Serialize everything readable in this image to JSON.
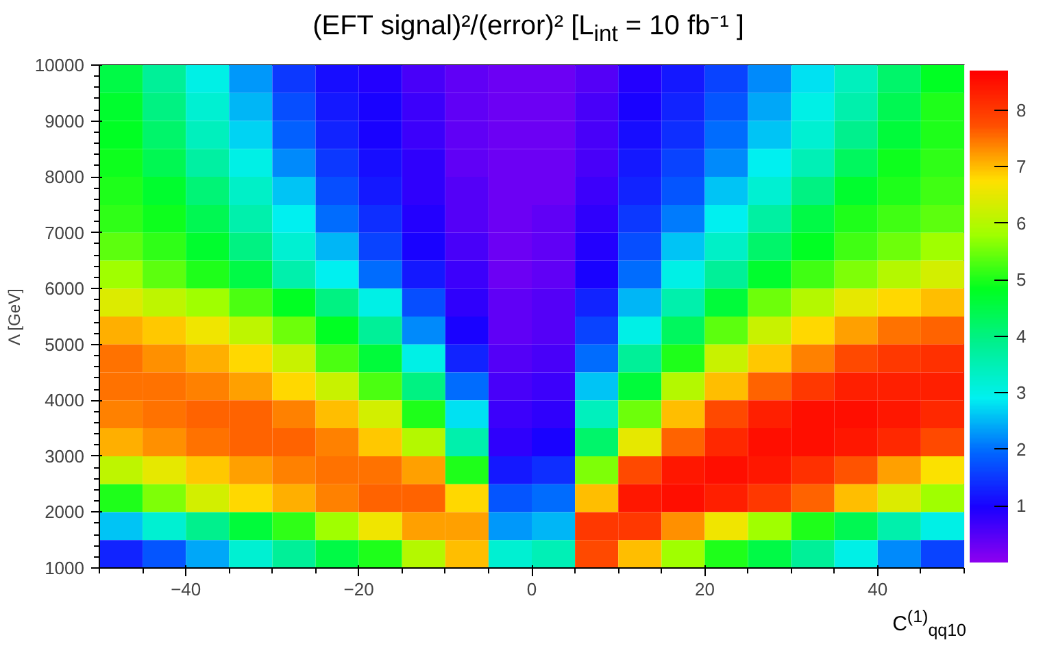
{
  "chart_data": {
    "type": "heatmap",
    "title": "(EFT signal)²/(error)² [L$_{int}$ = 10 fb⁻¹ ]",
    "xlabel": "C$^{(1)}$$_{qq10}$",
    "ylabel": "Λ [GeV]",
    "x": [
      -47.5,
      -42.5,
      -37.5,
      -32.5,
      -27.5,
      -22.5,
      -17.5,
      -12.5,
      -7.5,
      -2.5,
      2.5,
      7.5,
      12.5,
      17.5,
      22.5,
      27.5,
      32.5,
      37.5,
      42.5,
      47.5
    ],
    "y": [
      9750,
      9250,
      8750,
      8250,
      7750,
      7250,
      6750,
      6250,
      5750,
      5250,
      4750,
      4250,
      3750,
      3250,
      2750,
      2250,
      1750,
      1250
    ],
    "xlim": [
      -50,
      50
    ],
    "xticks": [
      -40,
      -20,
      0,
      20,
      40
    ],
    "ylim": [
      1000,
      10000
    ],
    "yticks": [
      1000,
      2000,
      3000,
      4000,
      5000,
      6000,
      7000,
      8000,
      9000,
      10000
    ],
    "clim": [
      0,
      8.7
    ],
    "cticks": [
      1,
      2,
      3,
      4,
      5,
      6,
      7,
      8
    ],
    "colors": [
      "#8c00f0",
      "#1a00ff",
      "#0066ff",
      "#00f0f0",
      "#00f090",
      "#00ff20",
      "#a0ff00",
      "#ffe000",
      "#ff5000",
      "#ff0000"
    ],
    "cells": [
      [
        4.5,
        3.8,
        3.0,
        2.3,
        1.5,
        1.1,
        0.9,
        0.6,
        0.4,
        0.3,
        0.3,
        0.5,
        0.9,
        1.2,
        1.6,
        2.2,
        2.8,
        3.4,
        4.2,
        4.8
      ],
      [
        4.7,
        4.0,
        3.2,
        2.5,
        1.7,
        1.2,
        1.0,
        0.7,
        0.4,
        0.3,
        0.3,
        0.6,
        1.0,
        1.3,
        1.8,
        2.4,
        3.0,
        3.6,
        4.4,
        5.0
      ],
      [
        4.8,
        4.2,
        3.4,
        2.7,
        1.9,
        1.3,
        1.0,
        0.7,
        0.4,
        0.3,
        0.3,
        0.6,
        1.1,
        1.4,
        2.0,
        2.6,
        3.2,
        3.9,
        4.6,
        5.0
      ],
      [
        4.9,
        4.4,
        3.7,
        3.0,
        2.2,
        1.5,
        1.1,
        0.8,
        0.4,
        0.3,
        0.3,
        0.6,
        1.2,
        1.6,
        2.2,
        2.9,
        3.5,
        4.3,
        4.9,
        5.1
      ],
      [
        5.0,
        4.7,
        4.1,
        3.3,
        2.6,
        1.7,
        1.2,
        0.8,
        0.5,
        0.3,
        0.3,
        0.7,
        1.3,
        1.8,
        2.6,
        3.2,
        4.0,
        4.7,
        5.0,
        5.2
      ],
      [
        5.1,
        4.9,
        4.4,
        3.6,
        2.9,
        2.0,
        1.4,
        0.9,
        0.5,
        0.3,
        0.4,
        0.8,
        1.5,
        2.1,
        2.9,
        3.7,
        4.5,
        5.0,
        5.2,
        5.4
      ],
      [
        5.4,
        5.1,
        4.7,
        4.0,
        3.2,
        2.5,
        1.6,
        1.0,
        0.6,
        0.3,
        0.4,
        0.9,
        1.7,
        2.6,
        3.3,
        4.2,
        4.8,
        5.2,
        5.5,
        5.8
      ],
      [
        5.8,
        5.4,
        5.0,
        4.5,
        3.6,
        2.9,
        2.0,
        1.2,
        0.7,
        0.3,
        0.4,
        1.0,
        2.0,
        3.0,
        3.8,
        4.7,
        5.2,
        5.6,
        6.0,
        6.3
      ],
      [
        6.4,
        6.1,
        5.8,
        5.3,
        4.8,
        4.0,
        3.0,
        1.7,
        0.8,
        0.4,
        0.5,
        1.3,
        2.5,
        3.6,
        4.6,
        5.5,
        6.0,
        6.5,
        6.8,
        7.0
      ],
      [
        7.1,
        6.9,
        6.6,
        6.1,
        5.5,
        4.8,
        3.8,
        2.2,
        1.0,
        0.4,
        0.5,
        1.6,
        3.0,
        4.3,
        5.4,
        6.2,
        6.8,
        7.2,
        7.5,
        7.6
      ],
      [
        7.5,
        7.3,
        7.1,
        6.8,
        6.2,
        5.3,
        4.6,
        3.0,
        1.3,
        0.5,
        0.6,
        2.0,
        3.8,
        5.0,
        6.2,
        6.9,
        7.4,
        7.8,
        8.0,
        8.1
      ],
      [
        7.5,
        7.5,
        7.4,
        7.2,
        6.8,
        6.2,
        5.3,
        4.0,
        2.0,
        0.6,
        0.7,
        2.6,
        4.6,
        6.0,
        7.0,
        7.6,
        8.0,
        8.3,
        8.3,
        8.3
      ],
      [
        7.4,
        7.5,
        7.6,
        7.6,
        7.4,
        7.0,
        6.3,
        5.0,
        2.8,
        0.7,
        0.8,
        3.4,
        5.5,
        7.0,
        7.8,
        8.3,
        8.5,
        8.5,
        8.4,
        8.2
      ],
      [
        7.1,
        7.3,
        7.5,
        7.6,
        7.6,
        7.4,
        6.9,
        6.0,
        3.6,
        0.8,
        1.0,
        4.2,
        6.5,
        7.6,
        8.2,
        8.5,
        8.5,
        8.4,
        8.2,
        7.8
      ],
      [
        6.1,
        6.5,
        6.9,
        7.2,
        7.4,
        7.5,
        7.5,
        7.2,
        5.0,
        1.2,
        1.4,
        5.6,
        7.8,
        8.4,
        8.5,
        8.4,
        8.1,
        7.7,
        7.2,
        6.7
      ],
      [
        5.0,
        5.6,
        6.3,
        6.8,
        7.1,
        7.4,
        7.6,
        7.6,
        6.8,
        1.8,
        2.0,
        7.0,
        8.4,
        8.5,
        8.3,
        8.0,
        7.6,
        7.0,
        6.4,
        5.8
      ],
      [
        2.6,
        3.2,
        3.9,
        4.6,
        5.1,
        5.8,
        6.6,
        7.2,
        7.2,
        2.3,
        2.5,
        8.0,
        8.0,
        7.3,
        6.6,
        5.8,
        5.0,
        4.4,
        3.6,
        3.0
      ],
      [
        1.3,
        1.8,
        2.4,
        3.2,
        3.8,
        4.5,
        5.0,
        6.0,
        7.0,
        3.2,
        3.5,
        7.8,
        7.0,
        5.8,
        5.0,
        4.5,
        3.8,
        3.0,
        2.2,
        1.6
      ]
    ]
  }
}
